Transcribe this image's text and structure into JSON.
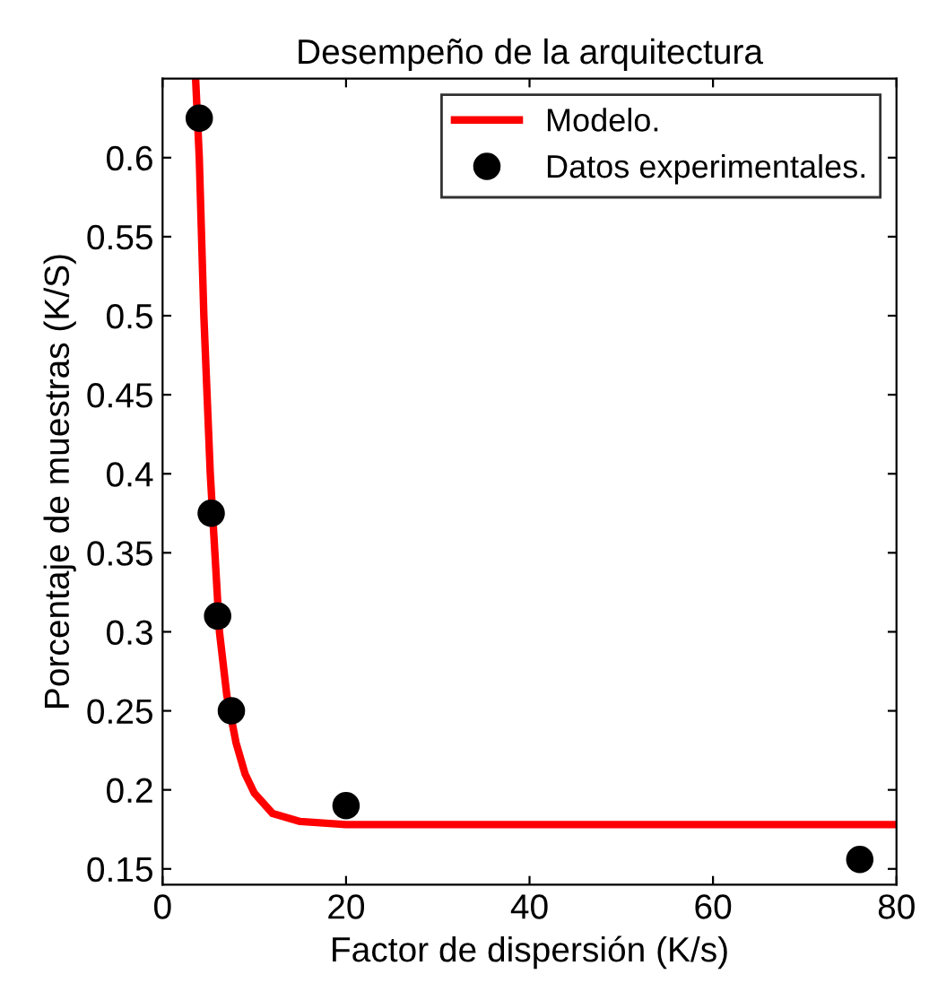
{
  "chart_data": {
    "type": "line",
    "title": "Desempeño de la arquitectura",
    "xlabel": "Factor de dispersión (K/s)",
    "ylabel": "Porcentaje de muestras (K/S)",
    "xlim": [
      0,
      80
    ],
    "ylim": [
      0.14,
      0.65
    ],
    "xticks": [
      0,
      20,
      40,
      60,
      80
    ],
    "yticks": [
      0.15,
      0.2,
      0.25,
      0.3,
      0.35,
      0.4,
      0.45,
      0.5,
      0.55,
      0.6
    ],
    "grid": false,
    "legend": "top right",
    "series": [
      {
        "name": "Modelo.",
        "color": "#ff0000",
        "line_style": "solid",
        "marker": "none",
        "x": [
          3.6,
          4,
          4.5,
          5.2,
          5.7,
          6.2,
          7,
          8,
          9,
          10,
          12,
          15,
          20,
          40,
          80
        ],
        "values": [
          0.65,
          0.6,
          0.5,
          0.4,
          0.35,
          0.3,
          0.26,
          0.23,
          0.21,
          0.198,
          0.185,
          0.18,
          0.178,
          0.178,
          0.178
        ]
      },
      {
        "name": "Datos experimentales.",
        "type": "scatter",
        "color": "#000000",
        "marker": "circle",
        "x": [
          4,
          5.3,
          6,
          7.5,
          20,
          76
        ],
        "values": [
          0.625,
          0.375,
          0.31,
          0.25,
          0.19,
          0.156
        ]
      }
    ]
  }
}
